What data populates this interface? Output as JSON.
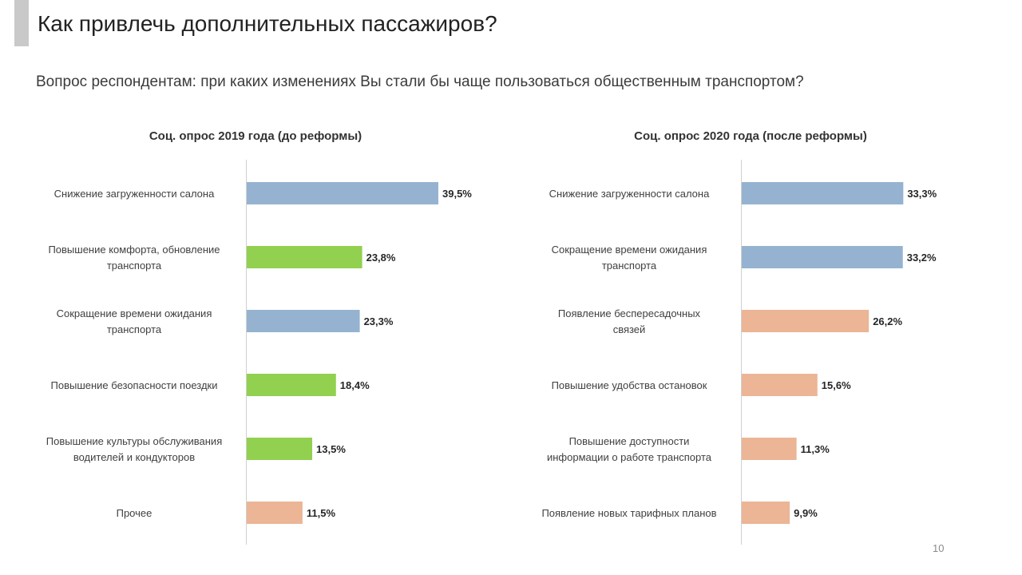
{
  "slide": {
    "title": "Как привлечь дополнительных пассажиров?",
    "subtitle": "Вопрос респондентам: при каких изменениях Вы стали бы чаще пользоваться общественным транспортом?",
    "page_number": "10"
  },
  "colors": {
    "blue": "#95b3d0",
    "green": "#92d050",
    "peach": "#ebb596",
    "axis": "#d0d0d0",
    "label": "#404040",
    "value": "#262626"
  },
  "chart_data": [
    {
      "type": "bar",
      "orientation": "horizontal",
      "title": "Соц. опрос 2019 года (до реформы)",
      "unit": "%",
      "xlim": [
        0,
        50
      ],
      "categories": [
        [
          "Снижение загруженности салона"
        ],
        [
          "Повышение комфорта, обновление",
          "транспорта"
        ],
        [
          "Сокращение времени ожидания",
          "транспорта"
        ],
        [
          "Повышение безопасности поездки"
        ],
        [
          "Повышение культуры обслуживания",
          "водителей и кондукторов"
        ],
        [
          "Прочее"
        ]
      ],
      "values": [
        39.5,
        23.8,
        23.3,
        18.4,
        13.5,
        11.5
      ],
      "value_labels": [
        "39,5%",
        "23,8%",
        "23,3%",
        "18,4%",
        "13,5%",
        "11,5%"
      ],
      "bar_colors": [
        "blue",
        "green",
        "blue",
        "green",
        "green",
        "peach"
      ]
    },
    {
      "type": "bar",
      "orientation": "horizontal",
      "title": "Соц. опрос 2020 года (после реформы)",
      "unit": "%",
      "xlim": [
        0,
        50
      ],
      "categories": [
        [
          "Снижение загруженности салона"
        ],
        [
          "Сокращение времени ожидания",
          "транспорта"
        ],
        [
          "Появление беспересадочных",
          "связей"
        ],
        [
          "Повышение удобства остановок"
        ],
        [
          "Повышение доступности",
          "информации о работе транспорта"
        ],
        [
          "Появление новых тарифных планов"
        ]
      ],
      "values": [
        33.3,
        33.2,
        26.2,
        15.6,
        11.3,
        9.9
      ],
      "value_labels": [
        "33,3%",
        "33,2%",
        "26,2%",
        "15,6%",
        "11,3%",
        "9,9%"
      ],
      "bar_colors": [
        "blue",
        "blue",
        "peach",
        "peach",
        "peach",
        "peach"
      ]
    }
  ]
}
